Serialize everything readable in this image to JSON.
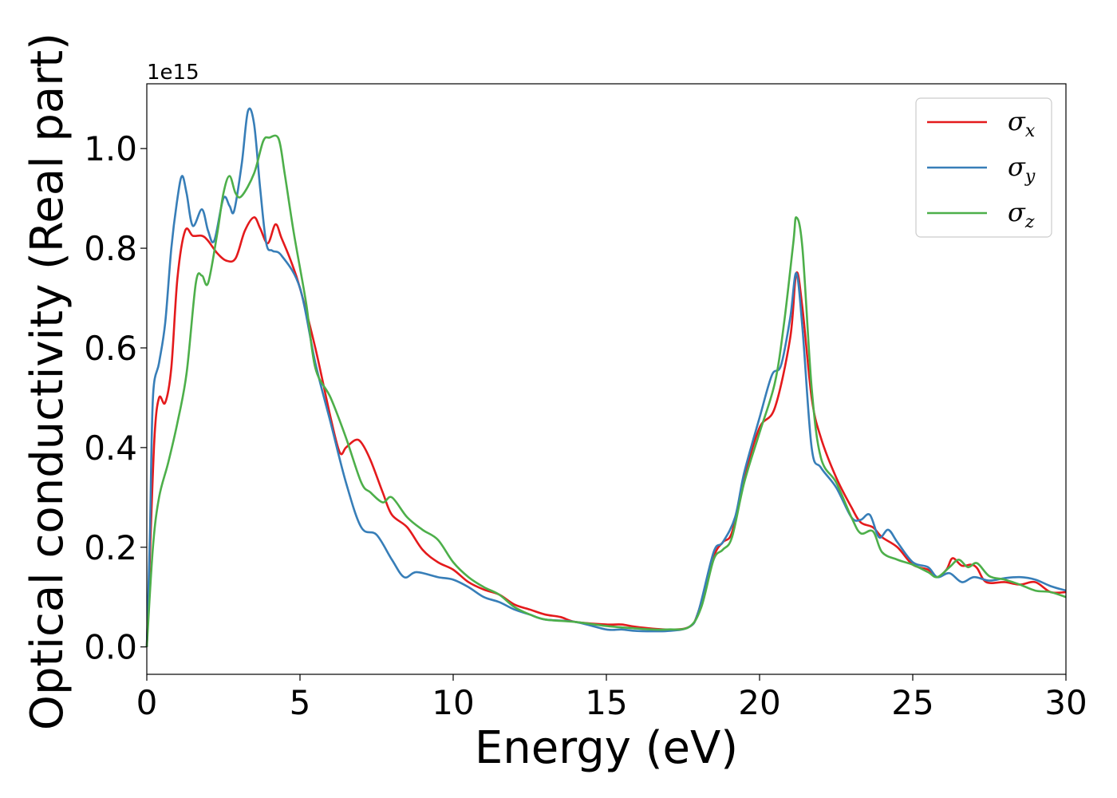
{
  "chart_data": {
    "type": "line",
    "title": "",
    "xlabel": "Energy (eV)",
    "ylabel": "Optical conductivity (Real part)",
    "y_offset_text": "1e15",
    "xlim": [
      0,
      30
    ],
    "ylim": [
      -0.055,
      1.13
    ],
    "xticks": [
      0,
      5,
      10,
      15,
      20,
      25,
      30
    ],
    "xtick_labels": [
      "0",
      "5",
      "10",
      "15",
      "20",
      "25",
      "30"
    ],
    "yticks": [
      0.0,
      0.2,
      0.4,
      0.6,
      0.8,
      1.0
    ],
    "ytick_labels": [
      "0.0",
      "0.2",
      "0.4",
      "0.6",
      "0.8",
      "1.0"
    ],
    "grid": false,
    "legend_position": "top-right",
    "series": [
      {
        "name": "σx",
        "label_base": "σ",
        "label_sub": "x",
        "color": "#e41a1c",
        "points": [
          [
            0,
            0.0
          ],
          [
            0.1,
            0.18
          ],
          [
            0.25,
            0.42
          ],
          [
            0.4,
            0.5
          ],
          [
            0.6,
            0.49
          ],
          [
            0.8,
            0.56
          ],
          [
            1.0,
            0.74
          ],
          [
            1.25,
            0.835
          ],
          [
            1.5,
            0.825
          ],
          [
            1.8,
            0.825
          ],
          [
            2.0,
            0.815
          ],
          [
            2.3,
            0.79
          ],
          [
            2.6,
            0.775
          ],
          [
            2.9,
            0.78
          ],
          [
            3.2,
            0.835
          ],
          [
            3.5,
            0.862
          ],
          [
            3.7,
            0.84
          ],
          [
            3.95,
            0.81
          ],
          [
            4.2,
            0.848
          ],
          [
            4.4,
            0.82
          ],
          [
            4.7,
            0.775
          ],
          [
            5.0,
            0.72
          ],
          [
            5.5,
            0.6
          ],
          [
            6.0,
            0.46
          ],
          [
            6.3,
            0.39
          ],
          [
            6.5,
            0.4
          ],
          [
            6.8,
            0.415
          ],
          [
            7.0,
            0.41
          ],
          [
            7.3,
            0.375
          ],
          [
            7.7,
            0.31
          ],
          [
            8.0,
            0.265
          ],
          [
            8.5,
            0.24
          ],
          [
            9.0,
            0.195
          ],
          [
            9.5,
            0.17
          ],
          [
            10.0,
            0.155
          ],
          [
            10.5,
            0.13
          ],
          [
            11.0,
            0.115
          ],
          [
            11.5,
            0.105
          ],
          [
            12.0,
            0.085
          ],
          [
            12.5,
            0.075
          ],
          [
            13.0,
            0.065
          ],
          [
            13.5,
            0.06
          ],
          [
            14.0,
            0.05
          ],
          [
            15.0,
            0.045
          ],
          [
            15.5,
            0.045
          ],
          [
            16.0,
            0.04
          ],
          [
            17.0,
            0.035
          ],
          [
            17.7,
            0.04
          ],
          [
            18.0,
            0.07
          ],
          [
            18.5,
            0.18
          ],
          [
            18.8,
            0.21
          ],
          [
            19.1,
            0.23
          ],
          [
            19.5,
            0.34
          ],
          [
            20.0,
            0.44
          ],
          [
            20.5,
            0.48
          ],
          [
            21.0,
            0.62
          ],
          [
            21.2,
            0.75
          ],
          [
            21.4,
            0.68
          ],
          [
            21.7,
            0.5
          ],
          [
            22.0,
            0.42
          ],
          [
            22.5,
            0.34
          ],
          [
            23.0,
            0.28
          ],
          [
            23.3,
            0.25
          ],
          [
            23.7,
            0.24
          ],
          [
            24.0,
            0.22
          ],
          [
            24.5,
            0.2
          ],
          [
            25.0,
            0.165
          ],
          [
            25.5,
            0.155
          ],
          [
            25.8,
            0.14
          ],
          [
            26.1,
            0.155
          ],
          [
            26.3,
            0.178
          ],
          [
            26.6,
            0.163
          ],
          [
            26.9,
            0.165
          ],
          [
            27.1,
            0.158
          ],
          [
            27.4,
            0.13
          ],
          [
            28.0,
            0.13
          ],
          [
            28.5,
            0.125
          ],
          [
            29.0,
            0.13
          ],
          [
            29.5,
            0.11
          ],
          [
            30.0,
            0.11
          ]
        ]
      },
      {
        "name": "σy",
        "label_base": "σ",
        "label_sub": "y",
        "color": "#377eb8",
        "points": [
          [
            0,
            0.0
          ],
          [
            0.1,
            0.22
          ],
          [
            0.2,
            0.5
          ],
          [
            0.4,
            0.57
          ],
          [
            0.6,
            0.65
          ],
          [
            0.8,
            0.8
          ],
          [
            1.0,
            0.9
          ],
          [
            1.15,
            0.945
          ],
          [
            1.3,
            0.91
          ],
          [
            1.5,
            0.845
          ],
          [
            1.8,
            0.878
          ],
          [
            2.0,
            0.835
          ],
          [
            2.2,
            0.815
          ],
          [
            2.5,
            0.9
          ],
          [
            2.7,
            0.885
          ],
          [
            2.85,
            0.875
          ],
          [
            3.1,
            0.97
          ],
          [
            3.3,
            1.075
          ],
          [
            3.5,
            1.05
          ],
          [
            3.7,
            0.92
          ],
          [
            3.9,
            0.81
          ],
          [
            4.1,
            0.795
          ],
          [
            4.4,
            0.785
          ],
          [
            5.0,
            0.72
          ],
          [
            5.5,
            0.57
          ],
          [
            6.0,
            0.45
          ],
          [
            6.5,
            0.33
          ],
          [
            7.0,
            0.24
          ],
          [
            7.5,
            0.225
          ],
          [
            8.0,
            0.175
          ],
          [
            8.4,
            0.14
          ],
          [
            8.8,
            0.15
          ],
          [
            9.5,
            0.14
          ],
          [
            10.0,
            0.135
          ],
          [
            10.5,
            0.12
          ],
          [
            11.0,
            0.1
          ],
          [
            11.5,
            0.09
          ],
          [
            12.0,
            0.075
          ],
          [
            12.5,
            0.065
          ],
          [
            13.0,
            0.055
          ],
          [
            14.0,
            0.05
          ],
          [
            15.0,
            0.035
          ],
          [
            15.5,
            0.035
          ],
          [
            16.0,
            0.032
          ],
          [
            17.0,
            0.032
          ],
          [
            17.7,
            0.04
          ],
          [
            18.0,
            0.07
          ],
          [
            18.5,
            0.19
          ],
          [
            18.8,
            0.21
          ],
          [
            19.2,
            0.26
          ],
          [
            19.5,
            0.35
          ],
          [
            20.0,
            0.46
          ],
          [
            20.4,
            0.545
          ],
          [
            20.7,
            0.565
          ],
          [
            21.0,
            0.66
          ],
          [
            21.2,
            0.75
          ],
          [
            21.4,
            0.64
          ],
          [
            21.7,
            0.4
          ],
          [
            22.0,
            0.36
          ],
          [
            22.5,
            0.32
          ],
          [
            23.0,
            0.26
          ],
          [
            23.3,
            0.255
          ],
          [
            23.6,
            0.265
          ],
          [
            23.9,
            0.22
          ],
          [
            24.2,
            0.235
          ],
          [
            24.5,
            0.21
          ],
          [
            25.0,
            0.17
          ],
          [
            25.5,
            0.16
          ],
          [
            25.8,
            0.14
          ],
          [
            26.2,
            0.148
          ],
          [
            26.6,
            0.13
          ],
          [
            27.0,
            0.14
          ],
          [
            27.5,
            0.133
          ],
          [
            28.0,
            0.138
          ],
          [
            28.5,
            0.14
          ],
          [
            29.0,
            0.135
          ],
          [
            29.5,
            0.122
          ],
          [
            30.0,
            0.113
          ]
        ]
      },
      {
        "name": "σz",
        "label_base": "σ",
        "label_sub": "z",
        "color": "#4daf4a",
        "points": [
          [
            0,
            0.0
          ],
          [
            0.2,
            0.2
          ],
          [
            0.4,
            0.3
          ],
          [
            0.7,
            0.37
          ],
          [
            1.0,
            0.45
          ],
          [
            1.3,
            0.55
          ],
          [
            1.6,
            0.73
          ],
          [
            1.8,
            0.745
          ],
          [
            2.0,
            0.73
          ],
          [
            2.3,
            0.83
          ],
          [
            2.5,
            0.91
          ],
          [
            2.7,
            0.945
          ],
          [
            2.9,
            0.91
          ],
          [
            3.1,
            0.905
          ],
          [
            3.5,
            0.95
          ],
          [
            3.8,
            1.015
          ],
          [
            4.0,
            1.022
          ],
          [
            4.3,
            1.02
          ],
          [
            4.5,
            0.95
          ],
          [
            4.8,
            0.83
          ],
          [
            5.2,
            0.69
          ],
          [
            5.5,
            0.56
          ],
          [
            6.0,
            0.5
          ],
          [
            6.5,
            0.42
          ],
          [
            7.0,
            0.33
          ],
          [
            7.3,
            0.31
          ],
          [
            7.7,
            0.29
          ],
          [
            8.0,
            0.3
          ],
          [
            8.5,
            0.26
          ],
          [
            9.0,
            0.235
          ],
          [
            9.5,
            0.215
          ],
          [
            10.0,
            0.17
          ],
          [
            10.5,
            0.14
          ],
          [
            11.0,
            0.12
          ],
          [
            11.5,
            0.105
          ],
          [
            12.0,
            0.08
          ],
          [
            12.5,
            0.065
          ],
          [
            13.0,
            0.055
          ],
          [
            14.0,
            0.05
          ],
          [
            15.0,
            0.042
          ],
          [
            16.0,
            0.037
          ],
          [
            16.5,
            0.035
          ],
          [
            17.0,
            0.035
          ],
          [
            17.7,
            0.04
          ],
          [
            18.1,
            0.08
          ],
          [
            18.5,
            0.175
          ],
          [
            18.8,
            0.195
          ],
          [
            19.1,
            0.22
          ],
          [
            19.5,
            0.33
          ],
          [
            20.0,
            0.43
          ],
          [
            20.5,
            0.53
          ],
          [
            20.8,
            0.65
          ],
          [
            21.1,
            0.81
          ],
          [
            21.2,
            0.862
          ],
          [
            21.4,
            0.8
          ],
          [
            21.7,
            0.52
          ],
          [
            22.0,
            0.38
          ],
          [
            22.5,
            0.33
          ],
          [
            23.0,
            0.26
          ],
          [
            23.3,
            0.228
          ],
          [
            23.7,
            0.232
          ],
          [
            24.0,
            0.19
          ],
          [
            24.5,
            0.175
          ],
          [
            25.0,
            0.165
          ],
          [
            25.5,
            0.15
          ],
          [
            25.8,
            0.14
          ],
          [
            26.2,
            0.16
          ],
          [
            26.5,
            0.175
          ],
          [
            26.8,
            0.16
          ],
          [
            27.1,
            0.168
          ],
          [
            27.5,
            0.142
          ],
          [
            28.0,
            0.135
          ],
          [
            28.5,
            0.125
          ],
          [
            29.0,
            0.113
          ],
          [
            29.5,
            0.11
          ],
          [
            30.0,
            0.1
          ]
        ]
      }
    ]
  }
}
